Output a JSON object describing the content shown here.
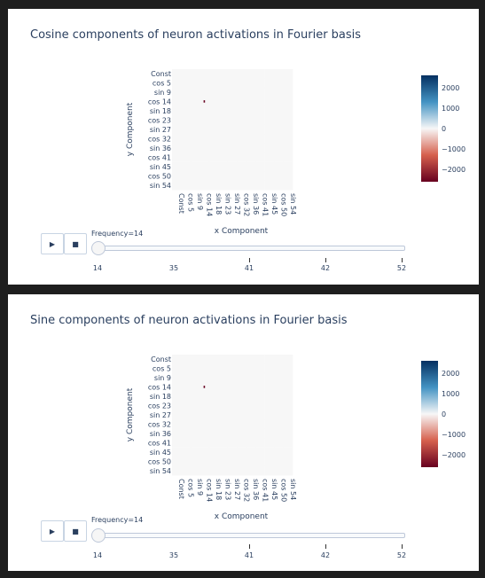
{
  "panels": [
    {
      "title": "Cosine components of neuron activations in Fourier basis",
      "slider_label": "Frequency=14",
      "play_icon": "▶",
      "stop_icon": "■",
      "steps": [
        "14",
        "35",
        "41",
        "42",
        "52"
      ]
    },
    {
      "title": "Sine components of neuron activations in Fourier basis",
      "slider_label": "Frequency=14",
      "play_icon": "▶",
      "stop_icon": "■",
      "steps": [
        "14",
        "35",
        "41",
        "42",
        "52"
      ]
    }
  ],
  "colors": {
    "neg_strong": "#67001f",
    "neg_mid": "#d6604d",
    "neutral": "#f7f7f7",
    "pos_mid": "#4393c3",
    "pos_strong": "#053061",
    "text": "#2a3f5f"
  },
  "chart_data": [
    {
      "type": "heatmap",
      "title": "Cosine components of neuron activations in Fourier basis",
      "xlabel": "x Component",
      "ylabel": "y Component",
      "x_ticks": [
        "Const",
        "cos 5",
        "sin 9",
        "cos 14",
        "sin 18",
        "sin 23",
        "sin 27",
        "cos 32",
        "sin 36",
        "cos 41",
        "sin 45",
        "cos 50",
        "sin 54"
      ],
      "y_ticks": [
        "Const",
        "cos 5",
        "sin 9",
        "cos 14",
        "sin 18",
        "cos 23",
        "sin 27",
        "cos 32",
        "sin 36",
        "cos 41",
        "sin 45",
        "cos 50",
        "sin 54"
      ],
      "colorbar": {
        "ticks": [
          2000,
          1000,
          0,
          -1000,
          -2000
        ],
        "range": [
          -2600,
          2600
        ]
      },
      "highlights": [
        {
          "x": "cos 14",
          "y": "cos 14",
          "value": -2600
        }
      ]
    },
    {
      "type": "heatmap",
      "title": "Sine components of neuron activations in Fourier basis",
      "xlabel": "x Component",
      "ylabel": "y Component",
      "x_ticks": [
        "Const",
        "cos 5",
        "sin 9",
        "cos 14",
        "sin 18",
        "sin 23",
        "sin 27",
        "cos 32",
        "sin 36",
        "cos 41",
        "sin 45",
        "cos 50",
        "sin 54"
      ],
      "y_ticks": [
        "Const",
        "cos 5",
        "sin 9",
        "cos 14",
        "sin 18",
        "cos 23",
        "sin 27",
        "cos 32",
        "sin 36",
        "cos 41",
        "sin 45",
        "cos 50",
        "sin 54"
      ],
      "colorbar": {
        "ticks": [
          2000,
          1000,
          0,
          -1000,
          -2000
        ],
        "range": [
          -2600,
          2600
        ]
      },
      "highlights": [
        {
          "x": "cos 14",
          "y": "cos 14",
          "value": -2600
        }
      ]
    }
  ]
}
